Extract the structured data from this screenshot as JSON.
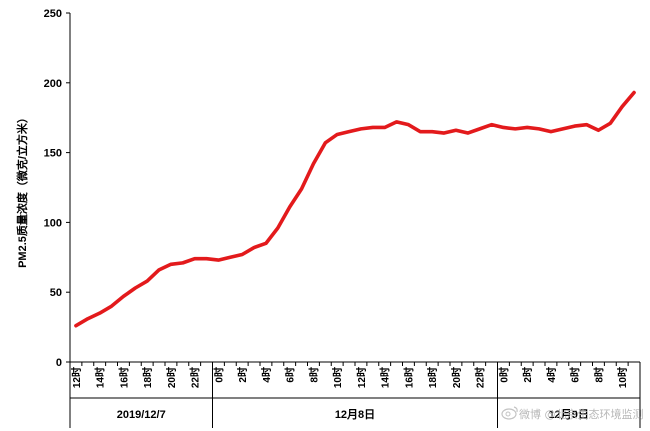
{
  "chart_data": {
    "type": "line",
    "title": "",
    "xlabel": "",
    "ylabel": "PM2.5质量浓度（微克/立方米）",
    "ylim": [
      0,
      250
    ],
    "yticks": [
      0,
      50,
      100,
      150,
      200,
      250
    ],
    "grid": false,
    "legend": "none",
    "line_color": "#e31a1c",
    "x": [
      "12时",
      "13时",
      "14时",
      "15时",
      "16时",
      "17时",
      "18时",
      "19时",
      "20时",
      "21时",
      "22时",
      "23时",
      "0时",
      "1时",
      "2时",
      "3时",
      "4时",
      "5时",
      "6时",
      "7时",
      "8时",
      "9时",
      "10时",
      "11时",
      "12时",
      "13时",
      "14时",
      "15时",
      "16时",
      "17时",
      "18时",
      "19时",
      "20时",
      "21时",
      "22时",
      "23时",
      "0时",
      "1时",
      "2时",
      "3时",
      "4时",
      "5时",
      "6时",
      "7时",
      "8时",
      "9时",
      "10时",
      "11时"
    ],
    "xtick_labels": [
      "12时",
      "14时",
      "16时",
      "18时",
      "20时",
      "22时",
      "0时",
      "2时",
      "4时",
      "6时",
      "8时",
      "10时",
      "12时",
      "14时",
      "16时",
      "18时",
      "20时",
      "22时",
      "0时",
      "2时",
      "4时",
      "6时",
      "8时",
      "10时"
    ],
    "date_groups": [
      {
        "label": "2019/12/7",
        "start": 0,
        "count": 12
      },
      {
        "label": "12月8日",
        "start": 12,
        "count": 24
      },
      {
        "label": "12月9日",
        "start": 36,
        "count": 12
      }
    ],
    "series": [
      {
        "values": [
          26,
          31,
          35,
          40,
          47,
          53,
          58,
          66,
          70,
          71,
          74,
          74,
          73,
          75,
          77,
          82,
          85,
          96,
          111,
          124,
          142,
          157,
          163,
          165,
          167,
          168,
          168,
          172,
          170,
          165,
          165,
          164,
          166,
          164,
          167,
          170,
          168,
          167,
          168,
          167,
          165,
          167,
          169,
          170,
          166,
          171,
          183,
          193
        ]
      }
    ]
  },
  "watermark": {
    "text": "微博 @北京生态环境监测"
  }
}
